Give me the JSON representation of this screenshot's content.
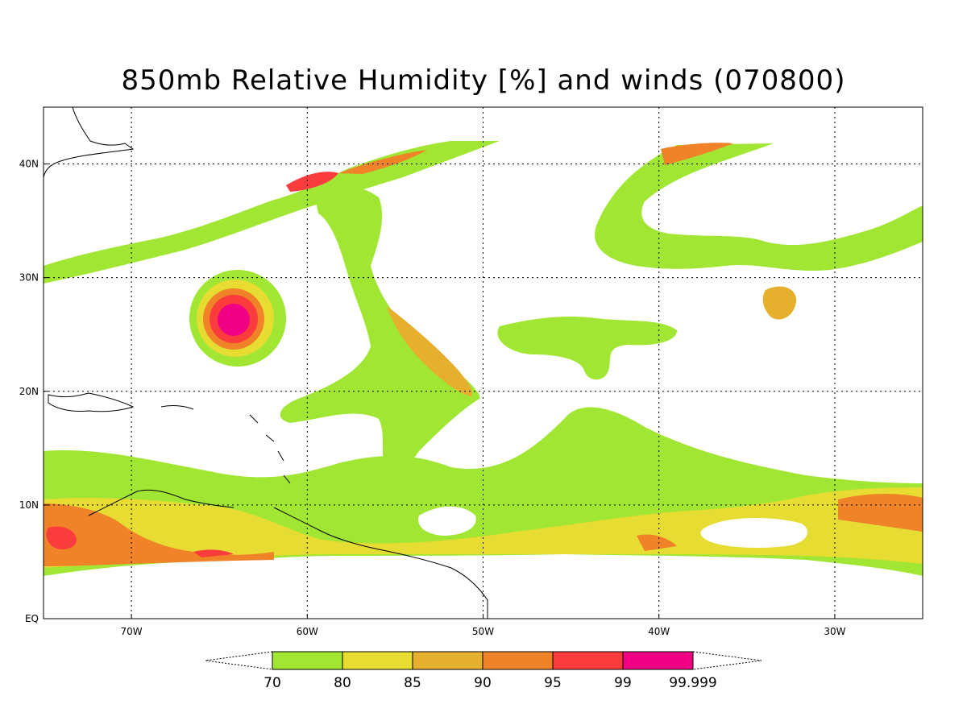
{
  "title": "850mb Relative Humidity [%] and winds (070800)",
  "lat_labels": [
    "EQ",
    "10N",
    "20N",
    "30N",
    "40N"
  ],
  "lat_values": [
    0,
    10,
    20,
    30,
    40
  ],
  "lon_labels": [
    "70W",
    "60W",
    "50W",
    "40W",
    "30W"
  ],
  "lon_values": [
    -70,
    -60,
    -50,
    -40,
    -30
  ],
  "map_extent": {
    "lon": [
      -75,
      -25
    ],
    "lat": [
      0,
      45
    ]
  },
  "colorbar": {
    "labels": [
      "70",
      "80",
      "85",
      "90",
      "95",
      "99",
      "99.999"
    ],
    "colors": [
      "#a0e632",
      "#e6dc32",
      "#e6af2d",
      "#f08228",
      "#fa3c3c",
      "#f00082"
    ]
  },
  "grid": true,
  "grid_style": "dotted"
}
